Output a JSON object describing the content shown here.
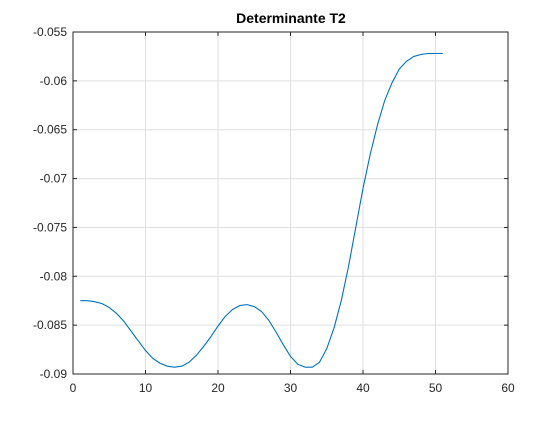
{
  "chart_data": {
    "type": "line",
    "title": "Determinante T2",
    "xlabel": "",
    "ylabel": "",
    "xlim": [
      0,
      60
    ],
    "ylim": [
      -0.09,
      -0.055
    ],
    "x_ticks": [
      0,
      10,
      20,
      30,
      40,
      50,
      60
    ],
    "x_tick_labels": [
      "0",
      "10",
      "20",
      "30",
      "40",
      "50",
      "60"
    ],
    "y_ticks": [
      -0.09,
      -0.085,
      -0.08,
      -0.075,
      -0.07,
      -0.065,
      -0.06,
      -0.055
    ],
    "y_tick_labels": [
      "-0.09",
      "-0.085",
      "-0.08",
      "-0.075",
      "-0.07",
      "-0.065",
      "-0.06",
      "-0.055"
    ],
    "grid": true,
    "line_color": "#0072BD",
    "series": [
      {
        "x": [
          1,
          2,
          3,
          4,
          5,
          6,
          7,
          8,
          9,
          10,
          11,
          12,
          13,
          14,
          15,
          16,
          17,
          18,
          19,
          20,
          21,
          22,
          23,
          24,
          25,
          26,
          27,
          28,
          29,
          30,
          31,
          32,
          33,
          34,
          35,
          36,
          37,
          38,
          39,
          40,
          41,
          42,
          43,
          44,
          45,
          46,
          47,
          48,
          49,
          50,
          51
        ],
        "values": [
          -0.0825,
          -0.0825,
          -0.0826,
          -0.0828,
          -0.0832,
          -0.0838,
          -0.0846,
          -0.0856,
          -0.0866,
          -0.0876,
          -0.0884,
          -0.0889,
          -0.0892,
          -0.0893,
          -0.0892,
          -0.0888,
          -0.0881,
          -0.0872,
          -0.0862,
          -0.0851,
          -0.0841,
          -0.0834,
          -0.083,
          -0.0829,
          -0.0831,
          -0.0836,
          -0.0845,
          -0.0857,
          -0.087,
          -0.0882,
          -0.089,
          -0.0893,
          -0.0893,
          -0.0888,
          -0.0874,
          -0.0853,
          -0.0825,
          -0.079,
          -0.075,
          -0.071,
          -0.0675,
          -0.0645,
          -0.062,
          -0.0602,
          -0.0588,
          -0.058,
          -0.0575,
          -0.0573,
          -0.0572,
          -0.0572,
          -0.0572
        ]
      }
    ]
  }
}
